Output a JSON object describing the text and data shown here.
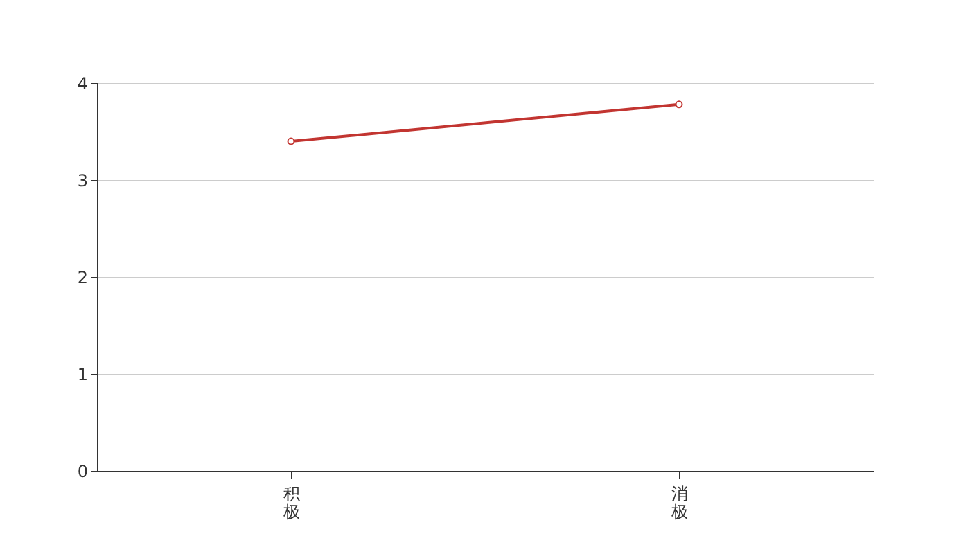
{
  "chart_data": {
    "type": "line",
    "categories": [
      "积极",
      "消极"
    ],
    "series": [
      {
        "color": "#c23531",
        "values": [
          3.4,
          3.78
        ]
      }
    ],
    "ylim": [
      0,
      4
    ],
    "yticks": [
      0,
      1,
      2,
      3,
      4
    ],
    "grid": "y",
    "marker": "circle"
  }
}
